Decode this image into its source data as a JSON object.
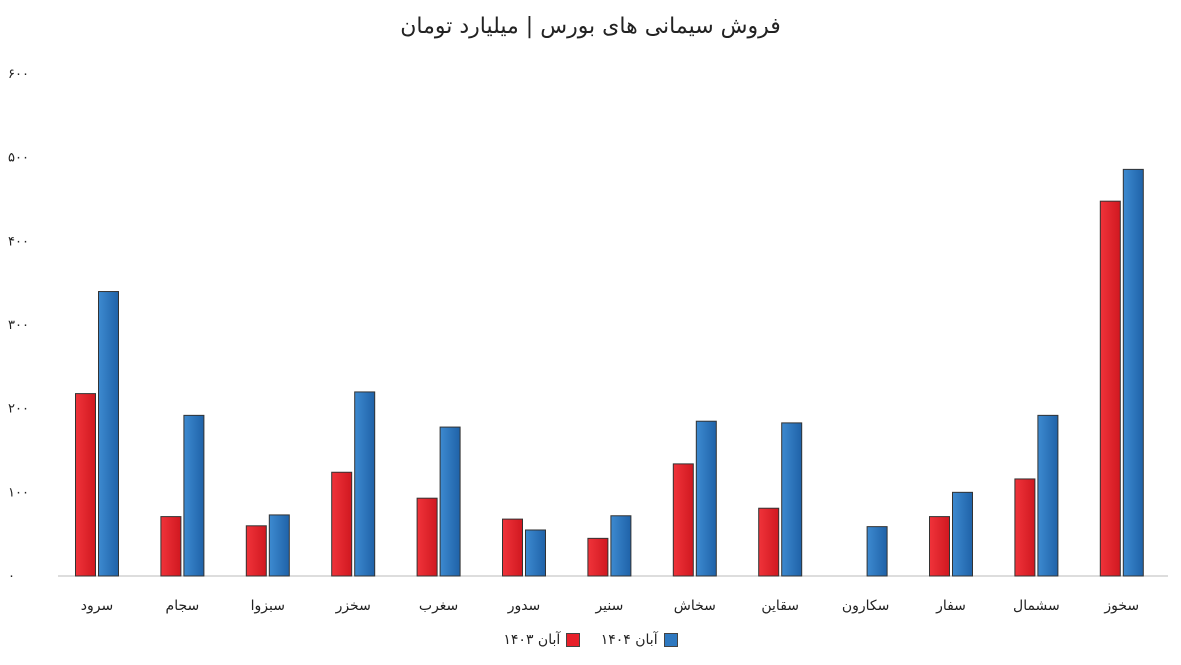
{
  "chart_data": {
    "type": "bar",
    "title": "فروش سیمانی های بورس | میلیارد تومان",
    "categories": [
      "سرود",
      "سجام",
      "سبزوا",
      "سخزر",
      "سغرب",
      "سدور",
      "سنیر",
      "سخاش",
      "سقاین",
      "سکارون",
      "سفار",
      "سشمال",
      "سخوز"
    ],
    "series": [
      {
        "name": "آبان ۱۴۰۳",
        "color": "#e8202a",
        "values": [
          218,
          71,
          60,
          124,
          93,
          68,
          45,
          134,
          81,
          null,
          71,
          116,
          448
        ]
      },
      {
        "name": "آبان ۱۴۰۴",
        "color": "#2e78c0",
        "values": [
          340,
          192,
          73,
          220,
          178,
          55,
          72,
          185,
          183,
          59,
          100,
          192,
          486
        ]
      }
    ],
    "ylim": [
      0,
      600
    ],
    "yticks": [
      "۰",
      "۱۰۰",
      "۲۰۰",
      "۳۰۰",
      "۴۰۰",
      "۵۰۰",
      "۶۰۰"
    ],
    "grid": false,
    "legend": "bottom-center"
  }
}
